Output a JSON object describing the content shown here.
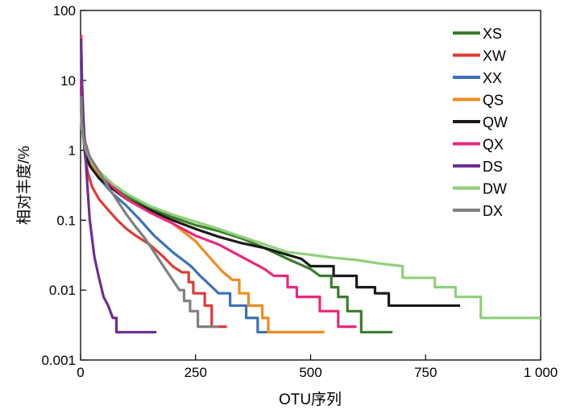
{
  "chart_data": {
    "type": "line",
    "title": "",
    "xlabel": "OTU序列",
    "ylabel": "相对丰度/%",
    "x_scale": "linear",
    "y_scale": "log",
    "xlim": [
      0,
      1000
    ],
    "ylim": [
      0.001,
      100
    ],
    "x_ticks": [
      0,
      250,
      500,
      750,
      1000
    ],
    "x_tick_labels": [
      "0",
      "250",
      "500",
      "750",
      "1 000"
    ],
    "y_ticks": [
      0.001,
      0.01,
      0.1,
      1,
      10,
      100
    ],
    "y_tick_labels": [
      "0.001",
      "0.01",
      "0.1",
      "1",
      "10",
      "100"
    ],
    "grid": false,
    "legend_position": "top-right",
    "series": [
      {
        "name": "XS",
        "color": "#3a7d2c",
        "points": [
          [
            1,
            4
          ],
          [
            3,
            2.5
          ],
          [
            6,
            1.8
          ],
          [
            10,
            1.3
          ],
          [
            20,
            0.8
          ],
          [
            40,
            0.5
          ],
          [
            70,
            0.32
          ],
          [
            100,
            0.22
          ],
          [
            150,
            0.15
          ],
          [
            200,
            0.11
          ],
          [
            250,
            0.085
          ],
          [
            300,
            0.07
          ],
          [
            350,
            0.055
          ],
          [
            400,
            0.04
          ],
          [
            450,
            0.028
          ],
          [
            500,
            0.02
          ],
          [
            520,
            0.016
          ],
          [
            545,
            0.016
          ],
          [
            545,
            0.011
          ],
          [
            560,
            0.011
          ],
          [
            560,
            0.008
          ],
          [
            580,
            0.008
          ],
          [
            580,
            0.005
          ],
          [
            610,
            0.005
          ],
          [
            610,
            0.0025
          ],
          [
            678,
            0.0025
          ]
        ]
      },
      {
        "name": "XW",
        "color": "#e03a32",
        "points": [
          [
            1,
            45
          ],
          [
            3,
            8
          ],
          [
            6,
            2
          ],
          [
            10,
            0.8
          ],
          [
            15,
            0.5
          ],
          [
            25,
            0.3
          ],
          [
            40,
            0.2
          ],
          [
            60,
            0.14
          ],
          [
            80,
            0.1
          ],
          [
            100,
            0.075
          ],
          [
            120,
            0.06
          ],
          [
            150,
            0.045
          ],
          [
            180,
            0.03
          ],
          [
            200,
            0.022
          ],
          [
            220,
            0.018
          ],
          [
            235,
            0.018
          ],
          [
            235,
            0.013
          ],
          [
            245,
            0.013
          ],
          [
            245,
            0.009
          ],
          [
            270,
            0.009
          ],
          [
            270,
            0.006
          ],
          [
            285,
            0.006
          ],
          [
            285,
            0.003
          ],
          [
            318,
            0.003
          ]
        ]
      },
      {
        "name": "XX",
        "color": "#3a72b8",
        "points": [
          [
            1,
            20
          ],
          [
            3,
            5
          ],
          [
            6,
            2
          ],
          [
            10,
            1.2
          ],
          [
            20,
            0.7
          ],
          [
            40,
            0.4
          ],
          [
            70,
            0.24
          ],
          [
            100,
            0.16
          ],
          [
            130,
            0.1
          ],
          [
            160,
            0.06
          ],
          [
            200,
            0.035
          ],
          [
            240,
            0.022
          ],
          [
            260,
            0.016
          ],
          [
            280,
            0.012
          ],
          [
            300,
            0.009
          ],
          [
            325,
            0.009
          ],
          [
            325,
            0.006
          ],
          [
            360,
            0.006
          ],
          [
            360,
            0.004
          ],
          [
            385,
            0.004
          ],
          [
            385,
            0.0025
          ],
          [
            528,
            0.0025
          ]
        ]
      },
      {
        "name": "QS",
        "color": "#f08c1e",
        "points": [
          [
            1,
            5
          ],
          [
            3,
            2
          ],
          [
            6,
            1.5
          ],
          [
            10,
            1.1
          ],
          [
            20,
            0.7
          ],
          [
            40,
            0.45
          ],
          [
            70,
            0.28
          ],
          [
            100,
            0.2
          ],
          [
            150,
            0.13
          ],
          [
            200,
            0.09
          ],
          [
            250,
            0.05
          ],
          [
            290,
            0.025
          ],
          [
            310,
            0.018
          ],
          [
            330,
            0.014
          ],
          [
            345,
            0.014
          ],
          [
            345,
            0.009
          ],
          [
            365,
            0.009
          ],
          [
            365,
            0.006
          ],
          [
            395,
            0.006
          ],
          [
            395,
            0.004
          ],
          [
            408,
            0.004
          ],
          [
            408,
            0.0025
          ],
          [
            530,
            0.0025
          ]
        ]
      },
      {
        "name": "QW",
        "color": "#1a1a1a",
        "points": [
          [
            1,
            8
          ],
          [
            3,
            3
          ],
          [
            6,
            1.5
          ],
          [
            10,
            0.9
          ],
          [
            20,
            0.6
          ],
          [
            40,
            0.4
          ],
          [
            70,
            0.28
          ],
          [
            100,
            0.2
          ],
          [
            150,
            0.14
          ],
          [
            200,
            0.1
          ],
          [
            250,
            0.075
          ],
          [
            300,
            0.058
          ],
          [
            350,
            0.047
          ],
          [
            400,
            0.04
          ],
          [
            450,
            0.032
          ],
          [
            480,
            0.028
          ],
          [
            500,
            0.022
          ],
          [
            550,
            0.022
          ],
          [
            550,
            0.016
          ],
          [
            600,
            0.016
          ],
          [
            600,
            0.011
          ],
          [
            640,
            0.011
          ],
          [
            640,
            0.009
          ],
          [
            670,
            0.009
          ],
          [
            670,
            0.006
          ],
          [
            825,
            0.006
          ]
        ]
      },
      {
        "name": "QX",
        "color": "#e8297c",
        "points": [
          [
            1,
            10
          ],
          [
            3,
            4
          ],
          [
            6,
            2
          ],
          [
            10,
            1.3
          ],
          [
            20,
            0.8
          ],
          [
            40,
            0.5
          ],
          [
            70,
            0.3
          ],
          [
            100,
            0.2
          ],
          [
            150,
            0.13
          ],
          [
            200,
            0.09
          ],
          [
            250,
            0.06
          ],
          [
            300,
            0.045
          ],
          [
            350,
            0.03
          ],
          [
            400,
            0.02
          ],
          [
            420,
            0.016
          ],
          [
            450,
            0.016
          ],
          [
            450,
            0.011
          ],
          [
            470,
            0.011
          ],
          [
            470,
            0.008
          ],
          [
            520,
            0.008
          ],
          [
            520,
            0.005
          ],
          [
            560,
            0.005
          ],
          [
            560,
            0.003
          ],
          [
            600,
            0.003
          ]
        ]
      },
      {
        "name": "DS",
        "color": "#6a2f95",
        "points": [
          [
            1,
            40
          ],
          [
            3,
            10
          ],
          [
            6,
            3
          ],
          [
            10,
            1
          ],
          [
            15,
            0.3
          ],
          [
            20,
            0.1
          ],
          [
            30,
            0.03
          ],
          [
            40,
            0.015
          ],
          [
            45,
            0.011
          ],
          [
            50,
            0.008
          ],
          [
            60,
            0.006
          ],
          [
            70,
            0.004
          ],
          [
            78,
            0.004
          ],
          [
            78,
            0.0025
          ],
          [
            165,
            0.0025
          ]
        ]
      },
      {
        "name": "DW",
        "color": "#90d07a",
        "points": [
          [
            1,
            3
          ],
          [
            3,
            2
          ],
          [
            6,
            1.5
          ],
          [
            10,
            1.1
          ],
          [
            20,
            0.75
          ],
          [
            40,
            0.5
          ],
          [
            70,
            0.33
          ],
          [
            100,
            0.24
          ],
          [
            150,
            0.16
          ],
          [
            200,
            0.12
          ],
          [
            250,
            0.095
          ],
          [
            300,
            0.075
          ],
          [
            350,
            0.058
          ],
          [
            400,
            0.045
          ],
          [
            450,
            0.035
          ],
          [
            500,
            0.032
          ],
          [
            550,
            0.029
          ],
          [
            600,
            0.027
          ],
          [
            650,
            0.024
          ],
          [
            700,
            0.022
          ],
          [
            700,
            0.015
          ],
          [
            770,
            0.015
          ],
          [
            770,
            0.011
          ],
          [
            815,
            0.011
          ],
          [
            815,
            0.008
          ],
          [
            870,
            0.008
          ],
          [
            870,
            0.004
          ],
          [
            1000,
            0.004
          ]
        ]
      },
      {
        "name": "DX",
        "color": "#808080",
        "points": [
          [
            1,
            6
          ],
          [
            3,
            2.5
          ],
          [
            6,
            1.6
          ],
          [
            10,
            1.2
          ],
          [
            20,
            0.8
          ],
          [
            40,
            0.5
          ],
          [
            60,
            0.3
          ],
          [
            80,
            0.19
          ],
          [
            100,
            0.12
          ],
          [
            120,
            0.08
          ],
          [
            140,
            0.055
          ],
          [
            160,
            0.035
          ],
          [
            180,
            0.022
          ],
          [
            200,
            0.014
          ],
          [
            215,
            0.01
          ],
          [
            225,
            0.01
          ],
          [
            225,
            0.007
          ],
          [
            238,
            0.007
          ],
          [
            238,
            0.005
          ],
          [
            255,
            0.005
          ],
          [
            255,
            0.003
          ],
          [
            300,
            0.003
          ]
        ]
      }
    ]
  }
}
